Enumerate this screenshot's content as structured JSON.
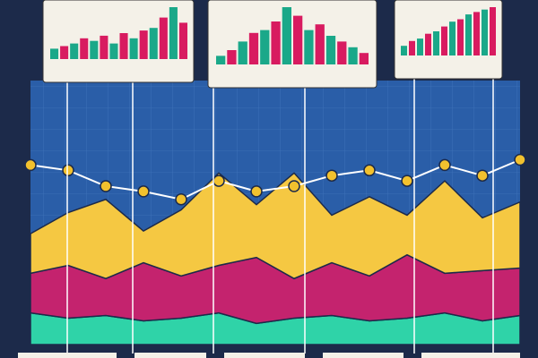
{
  "chart_data": [
    {
      "type": "stacked-area",
      "x": [
        0,
        1,
        2,
        3,
        4,
        5,
        6,
        7,
        8,
        9,
        10,
        11,
        12,
        13
      ],
      "xlim": [
        0,
        13
      ],
      "ylim": [
        0,
        100
      ],
      "series": [
        {
          "color": "#2fd3a8",
          "values": [
            12,
            10,
            11,
            9,
            10,
            12,
            8,
            10,
            11,
            9,
            10,
            12,
            9,
            11
          ]
        },
        {
          "color": "#c4236e",
          "values": [
            15,
            20,
            14,
            22,
            16,
            18,
            25,
            15,
            20,
            17,
            24,
            15,
            19,
            18
          ]
        },
        {
          "color": "#f5c842",
          "values": [
            15,
            20,
            30,
            12,
            25,
            35,
            20,
            40,
            18,
            30,
            15,
            35,
            20,
            25
          ]
        }
      ],
      "line": {
        "color": "#ffffff",
        "marker_color": "#f2c12e",
        "values": [
          68,
          66,
          60,
          58,
          55,
          62,
          58,
          60,
          64,
          66,
          62,
          68,
          64,
          70
        ]
      }
    },
    {
      "type": "bar",
      "ylim": [
        0,
        100
      ],
      "colors": [
        "#1aa889",
        "#d81b60"
      ],
      "values": [
        20,
        25,
        30,
        40,
        35,
        45,
        30,
        50,
        40,
        55,
        60,
        80,
        100,
        70
      ]
    },
    {
      "type": "bar",
      "ylim": [
        0,
        100
      ],
      "colors": [
        "#1aa889",
        "#d81b60"
      ],
      "values": [
        15,
        25,
        40,
        55,
        60,
        75,
        100,
        85,
        60,
        70,
        50,
        40,
        30,
        20
      ]
    },
    {
      "type": "bar",
      "ylim": [
        0,
        100
      ],
      "colors": [
        "#1aa889",
        "#d81b60"
      ],
      "values": [
        20,
        30,
        35,
        45,
        50,
        60,
        70,
        75,
        85,
        90,
        95,
        100
      ]
    }
  ]
}
